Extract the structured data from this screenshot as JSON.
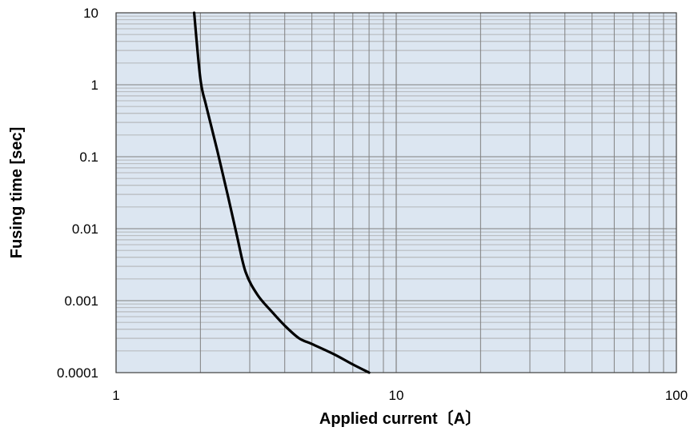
{
  "chart_data": {
    "type": "line",
    "title": "",
    "xlabel": "Applied current〔A〕",
    "ylabel": "Fusing time [sec]",
    "x_scale": "log",
    "y_scale": "log",
    "xlim": [
      1,
      100
    ],
    "ylim": [
      0.0001,
      10
    ],
    "grid": true,
    "legend": "none",
    "x_tick_labels": [
      "1",
      "10",
      "100"
    ],
    "y_tick_labels": [
      "10",
      "1",
      "0.1",
      "0.01",
      "0.001",
      "0.0001"
    ],
    "series": [
      {
        "x": [
          1.9,
          2.0,
          2.1,
          2.3,
          2.5,
          2.7,
          2.9,
          3.2,
          3.6,
          4.0,
          4.5,
          5.0,
          6.0,
          7.0,
          8.0
        ],
        "y": [
          10,
          1.2,
          0.5,
          0.12,
          0.03,
          0.008,
          0.0025,
          0.0012,
          0.0007,
          0.00045,
          0.0003,
          0.00025,
          0.00018,
          0.00013,
          0.0001
        ]
      }
    ],
    "colors": {
      "plot_background": "#dce6f1",
      "grid_major": "#808080",
      "grid_minor": "#a6a6a6",
      "curve": "#000000"
    }
  }
}
